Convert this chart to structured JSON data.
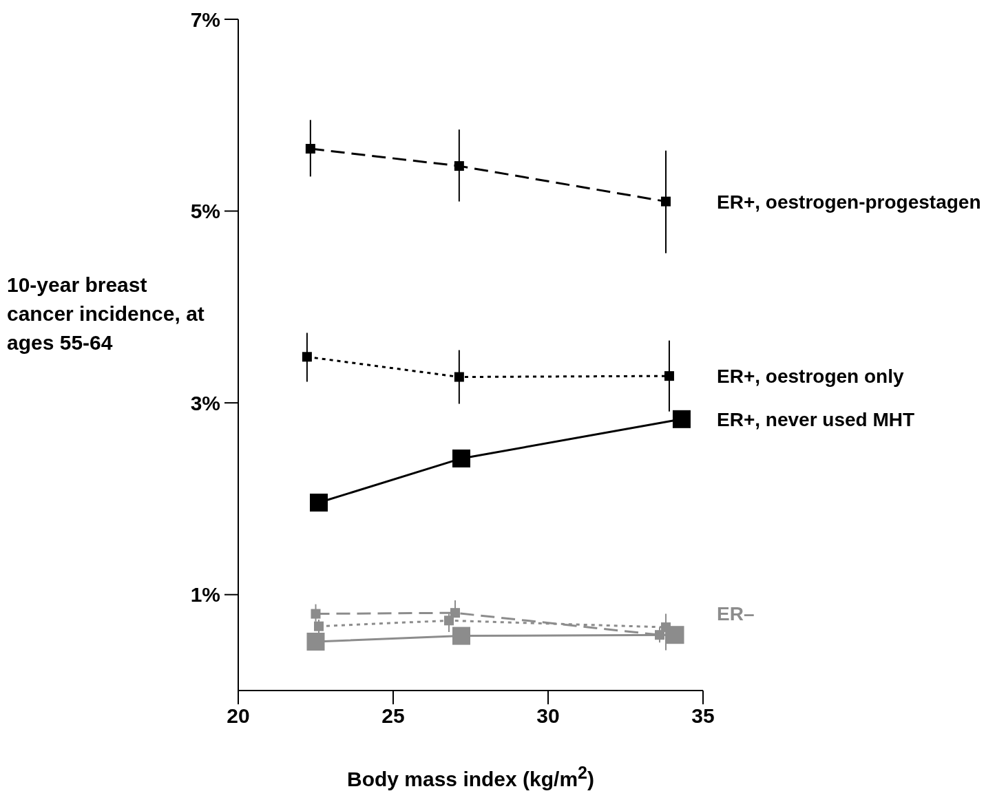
{
  "chart_data": {
    "type": "line",
    "xlabel": "Body mass index (kg/m$^{2}$)",
    "ylabel": "10-year breast cancer incidence, at ages 55-64",
    "xlim": [
      20,
      35
    ],
    "xticks": [
      20,
      25,
      30,
      35
    ],
    "ylim": [
      0,
      7
    ],
    "yticks": [
      {
        "value": 1,
        "label": "1%"
      },
      {
        "value": 3,
        "label": "3%"
      },
      {
        "value": 5,
        "label": "5%"
      },
      {
        "value": 7,
        "label": "7%"
      }
    ],
    "marker": "square",
    "annotations": [
      "ER–"
    ],
    "series": [
      {
        "name": "ER+, oestrogen-progestagen",
        "color": "#000000",
        "line_style": "dashed",
        "x": [
          22.33,
          27.13,
          33.8
        ],
        "values": [
          5.65,
          5.47,
          5.1
        ],
        "errors": [
          [
            5.36,
            5.95
          ],
          [
            5.1,
            5.85
          ],
          [
            4.56,
            5.63
          ]
        ]
      },
      {
        "name": "ER+, oestrogen only",
        "color": "#000000",
        "line_style": "dotted",
        "x": [
          22.22,
          27.13,
          33.91
        ],
        "values": [
          3.48,
          3.27,
          3.28
        ],
        "errors": [
          [
            3.22,
            3.73
          ],
          [
            2.99,
            3.55
          ],
          [
            2.91,
            3.65
          ]
        ]
      },
      {
        "name": "ER+, never used MHT",
        "color": "#000000",
        "line_style": "solid",
        "x": [
          22.6,
          27.2,
          34.31
        ],
        "values": [
          1.96,
          2.42,
          2.83
        ]
      },
      {
        "color": "#8c8c8c",
        "line_style": "dashed",
        "x": [
          22.5,
          27.0,
          33.6
        ],
        "values": [
          0.8,
          0.81,
          0.58
        ],
        "errors": [
          [
            0.72,
            0.9
          ],
          [
            0.81,
            0.94
          ],
          [
            0.5,
            0.66
          ]
        ]
      },
      {
        "color": "#8c8c8c",
        "line_style": "dotted",
        "x": [
          22.6,
          26.8,
          33.8
        ],
        "values": [
          0.67,
          0.73,
          0.66
        ],
        "errors": [
          [
            0.6,
            0.74
          ],
          [
            0.61,
            0.8
          ],
          [
            0.42,
            0.8
          ]
        ]
      },
      {
        "color": "#8c8c8c",
        "line_style": "solid",
        "x": [
          22.5,
          27.2,
          34.1
        ],
        "values": [
          0.51,
          0.57,
          0.58
        ]
      }
    ]
  }
}
